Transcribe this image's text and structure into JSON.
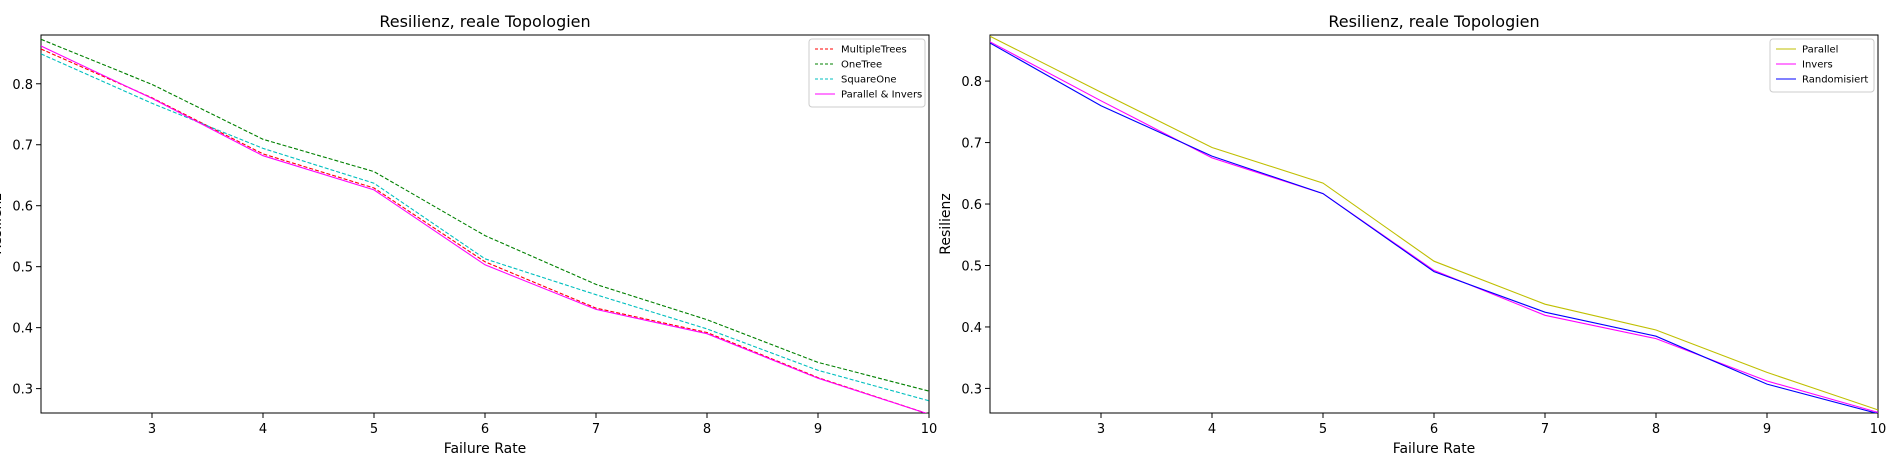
{
  "chart_data": [
    {
      "type": "line",
      "title": "Resilienz, reale Topologien",
      "xlabel": "Failure Rate",
      "ylabel": "Resilienz",
      "xlim": [
        2,
        10
      ],
      "ylim": [
        0.26,
        0.88
      ],
      "xticks": [
        "3",
        "4",
        "5",
        "6",
        "7",
        "8",
        "9",
        "10"
      ],
      "yticks": [
        "0.3",
        "0.4",
        "0.5",
        "0.6",
        "0.7",
        "0.8"
      ],
      "grid": false,
      "legend_position": "top-right",
      "x": [
        2,
        3,
        4,
        5,
        6,
        7,
        8,
        9,
        10
      ],
      "series": [
        {
          "name": "MultipleTrees",
          "color": "#ff0000",
          "dashed": true,
          "values": [
            0.857,
            0.777,
            0.685,
            0.629,
            0.508,
            0.432,
            0.392,
            0.318,
            0.258
          ]
        },
        {
          "name": "OneTree",
          "color": "#008000",
          "dashed": true,
          "values": [
            0.873,
            0.799,
            0.709,
            0.656,
            0.551,
            0.471,
            0.413,
            0.343,
            0.296
          ]
        },
        {
          "name": "SquareOne",
          "color": "#00bfbf",
          "dashed": true,
          "values": [
            0.849,
            0.768,
            0.694,
            0.637,
            0.513,
            0.454,
            0.398,
            0.33,
            0.28
          ]
        },
        {
          "name": "Parallel & Invers",
          "color": "#ff00ff",
          "dashed": false,
          "values": [
            0.862,
            0.776,
            0.682,
            0.626,
            0.503,
            0.43,
            0.39,
            0.317,
            0.258
          ]
        }
      ]
    },
    {
      "type": "line",
      "title": "Resilienz, reale Topologien",
      "xlabel": "Failure Rate",
      "ylabel": "Resilienz",
      "xlim": [
        2,
        10
      ],
      "ylim": [
        0.26,
        0.875
      ],
      "xticks": [
        "3",
        "4",
        "5",
        "6",
        "7",
        "8",
        "9",
        "10"
      ],
      "yticks": [
        "0.3",
        "0.4",
        "0.5",
        "0.6",
        "0.7",
        "0.8"
      ],
      "grid": false,
      "legend_position": "top-right",
      "x": [
        2,
        3,
        4,
        5,
        6,
        7,
        8,
        9,
        10
      ],
      "series": [
        {
          "name": "Parallel",
          "color": "#bfbf00",
          "dashed": false,
          "values": [
            0.873,
            0.782,
            0.692,
            0.634,
            0.507,
            0.437,
            0.395,
            0.326,
            0.265
          ]
        },
        {
          "name": "Invers",
          "color": "#ff00ff",
          "dashed": false,
          "values": [
            0.864,
            0.768,
            0.675,
            0.617,
            0.492,
            0.419,
            0.381,
            0.312,
            0.261
          ]
        },
        {
          "name": "Randomisiert",
          "color": "#0000ff",
          "dashed": false,
          "values": [
            0.862,
            0.76,
            0.678,
            0.617,
            0.49,
            0.424,
            0.385,
            0.307,
            0.259
          ]
        }
      ]
    }
  ]
}
